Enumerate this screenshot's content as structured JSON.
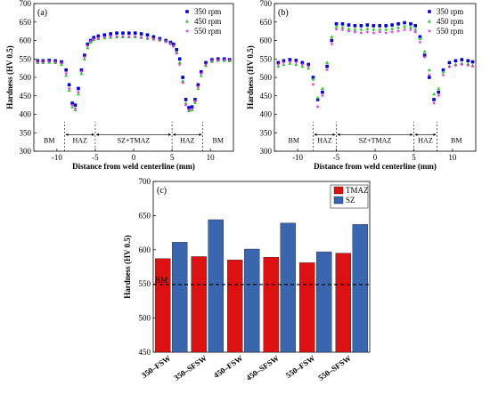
{
  "chart_data": [
    {
      "type": "scatter",
      "panel_label": "(a)",
      "xlabel": "Distance from weld centerline (mm)",
      "ylabel": "Hardness (HV 0.5)",
      "xlim": [
        -13,
        13
      ],
      "ylim": [
        300,
        700
      ],
      "xticks": [
        "-10",
        "-5",
        "0",
        "5",
        "10"
      ],
      "yticks": [
        "300",
        "350",
        "400",
        "450",
        "500",
        "550",
        "600",
        "650",
        "700"
      ],
      "zones": [
        {
          "label": "BM",
          "from": -13,
          "to": -9
        },
        {
          "label": "HAZ",
          "from": -9,
          "to": -5
        },
        {
          "label": "SZ+TMAZ",
          "from": -5,
          "to": 5
        },
        {
          "label": "HAZ",
          "from": 5,
          "to": 9
        },
        {
          "label": "BM",
          "from": 9,
          "to": 13
        }
      ],
      "series": [
        {
          "name": "350 rpm",
          "color": "#0000cc",
          "marker": "square",
          "x": [
            -12.5,
            -11.8,
            -11,
            -10.2,
            -9.4,
            -8.8,
            -8.4,
            -8.0,
            -7.6,
            -7.2,
            -6.8,
            -6.4,
            -6.0,
            -5.6,
            -5.2,
            -4.6,
            -3.8,
            -3.0,
            -2.2,
            -1.4,
            -0.6,
            0.2,
            1.0,
            1.8,
            2.6,
            3.4,
            4.2,
            4.8,
            5.2,
            5.6,
            6.0,
            6.4,
            6.8,
            7.2,
            7.6,
            8.0,
            8.4,
            8.8,
            9.4,
            10.2,
            11.0,
            11.8,
            12.5
          ],
          "y": [
            545,
            545,
            546,
            545,
            542,
            520,
            480,
            430,
            425,
            470,
            520,
            560,
            590,
            600,
            608,
            612,
            615,
            618,
            620,
            620,
            620,
            620,
            618,
            615,
            610,
            605,
            600,
            595,
            590,
            575,
            550,
            500,
            440,
            418,
            420,
            440,
            480,
            515,
            540,
            548,
            550,
            550,
            548
          ]
        },
        {
          "name": "450 rpm",
          "color": "#33cc33",
          "marker": "triangle",
          "x": [
            -12.5,
            -11.8,
            -11,
            -10.2,
            -9.4,
            -8.8,
            -8.4,
            -8.0,
            -7.6,
            -7.2,
            -6.8,
            -6.4,
            -6.0,
            -5.6,
            -5.2,
            -4.6,
            -3.8,
            -3.0,
            -2.2,
            -1.4,
            -0.6,
            0.2,
            1.0,
            1.8,
            2.6,
            3.4,
            4.2,
            4.8,
            5.2,
            5.6,
            6.0,
            6.4,
            6.8,
            7.2,
            7.6,
            8.0,
            8.4,
            8.8,
            9.4,
            10.2,
            11.0,
            11.8,
            12.5
          ],
          "y": [
            540,
            540,
            541,
            540,
            535,
            505,
            465,
            420,
            412,
            455,
            510,
            550,
            580,
            595,
            602,
            605,
            607,
            608,
            610,
            610,
            610,
            610,
            608,
            606,
            604,
            602,
            598,
            592,
            585,
            568,
            540,
            490,
            430,
            410,
            412,
            432,
            470,
            505,
            532,
            543,
            546,
            546,
            545
          ]
        },
        {
          "name": "550 rpm",
          "color": "#cc33cc",
          "marker": "star",
          "x": [
            -12.5,
            -11.8,
            -11,
            -10.2,
            -9.4,
            -8.8,
            -8.4,
            -8.0,
            -7.6,
            -7.2,
            -6.8,
            -6.4,
            -6.0,
            -5.6,
            -5.2,
            -4.6,
            -3.8,
            -3.0,
            -2.2,
            -1.4,
            -0.6,
            0.2,
            1.0,
            1.8,
            2.6,
            3.4,
            4.2,
            4.8,
            5.2,
            5.6,
            6.0,
            6.4,
            6.8,
            7.2,
            7.6,
            8.0,
            8.4,
            8.8,
            9.4,
            10.2,
            11.0,
            11.8,
            12.5
          ],
          "y": [
            542,
            542,
            543,
            542,
            538,
            510,
            470,
            425,
            415,
            460,
            515,
            555,
            585,
            598,
            603,
            606,
            608,
            610,
            610,
            610,
            610,
            610,
            608,
            606,
            603,
            600,
            596,
            590,
            584,
            565,
            535,
            485,
            425,
            412,
            414,
            436,
            474,
            510,
            535,
            545,
            547,
            547,
            546
          ]
        }
      ]
    },
    {
      "type": "scatter",
      "panel_label": "(b)",
      "xlabel": "Distance from weld centerline (mm)",
      "ylabel": "Hardness (HV 0.5)",
      "xlim": [
        -13,
        13
      ],
      "ylim": [
        300,
        700
      ],
      "xticks": [
        "-10",
        "-5",
        "0",
        "5",
        "10"
      ],
      "yticks": [
        "300",
        "350",
        "400",
        "450",
        "500",
        "550",
        "600",
        "650",
        "700"
      ],
      "zones": [
        {
          "label": "BM",
          "from": -13,
          "to": -8
        },
        {
          "label": "HAZ",
          "from": -8,
          "to": -5
        },
        {
          "label": "SZ+TMAZ",
          "from": -5,
          "to": 5
        },
        {
          "label": "HAZ",
          "from": 5,
          "to": 8
        },
        {
          "label": "BM",
          "from": 8,
          "to": 13
        }
      ],
      "series": [
        {
          "name": "350 rpm",
          "color": "#0000cc",
          "marker": "square",
          "x": [
            -12.5,
            -11.8,
            -11,
            -10.2,
            -9.4,
            -8.6,
            -8.0,
            -7.4,
            -6.8,
            -6.2,
            -5.6,
            -5.0,
            -4.2,
            -3.4,
            -2.6,
            -1.8,
            -1.0,
            -0.2,
            0.6,
            1.4,
            2.2,
            3.0,
            3.8,
            4.6,
            5.2,
            5.8,
            6.4,
            7.0,
            7.6,
            8.2,
            8.8,
            9.6,
            10.4,
            11.2,
            12.0,
            12.6
          ],
          "y": [
            540,
            545,
            548,
            546,
            540,
            535,
            500,
            440,
            460,
            530,
            600,
            645,
            645,
            642,
            640,
            640,
            642,
            640,
            640,
            640,
            642,
            645,
            648,
            645,
            640,
            610,
            560,
            500,
            440,
            460,
            520,
            540,
            545,
            548,
            545,
            542
          ]
        },
        {
          "name": "450 rpm",
          "color": "#33cc33",
          "marker": "triangle",
          "x": [
            -12.5,
            -11.8,
            -11,
            -10.2,
            -9.4,
            -8.6,
            -8.0,
            -7.4,
            -6.8,
            -6.2,
            -5.6,
            -5.0,
            -4.2,
            -3.4,
            -2.6,
            -1.8,
            -1.0,
            -0.2,
            0.6,
            1.4,
            2.2,
            3.0,
            3.8,
            4.6,
            5.2,
            5.8,
            6.4,
            7.0,
            7.6,
            8.2,
            8.8,
            9.6,
            10.4,
            11.2,
            12.0,
            12.6
          ],
          "y": [
            530,
            535,
            538,
            535,
            530,
            525,
            495,
            445,
            470,
            540,
            610,
            638,
            636,
            632,
            630,
            630,
            632,
            630,
            630,
            630,
            632,
            635,
            638,
            636,
            630,
            605,
            570,
            520,
            455,
            470,
            515,
            530,
            535,
            538,
            536,
            532
          ]
        },
        {
          "name": "550 rpm",
          "color": "#cc33cc",
          "marker": "star",
          "x": [
            -12.5,
            -11.8,
            -11,
            -10.2,
            -9.4,
            -8.6,
            -8.0,
            -7.4,
            -6.8,
            -6.2,
            -5.6,
            -5.0,
            -4.2,
            -3.4,
            -2.6,
            -1.8,
            -1.0,
            -0.2,
            0.6,
            1.4,
            2.2,
            3.0,
            3.8,
            4.6,
            5.2,
            5.8,
            6.4,
            7.0,
            7.6,
            8.2,
            8.8,
            9.6,
            10.4,
            11.2,
            12.0,
            12.6
          ],
          "y": [
            535,
            540,
            542,
            540,
            535,
            530,
            480,
            420,
            450,
            520,
            590,
            630,
            628,
            625,
            622,
            620,
            622,
            620,
            622,
            620,
            622,
            625,
            628,
            628,
            622,
            595,
            555,
            505,
            430,
            450,
            505,
            528,
            532,
            535,
            532,
            530
          ]
        }
      ]
    },
    {
      "type": "bar",
      "panel_label": "(c)",
      "ylabel": "Hardness (HV 0.5)",
      "ylim": [
        450,
        700
      ],
      "yticks": [
        "450",
        "500",
        "550",
        "600",
        "650",
        "700"
      ],
      "categories": [
        "350–FSW",
        "350–SFSW",
        "450–FSW",
        "450–SFSW",
        "550–FSW",
        "550–SFSW"
      ],
      "series": [
        {
          "name": "TMAZ",
          "color": "#dd1111",
          "values": [
            587,
            590,
            585,
            589,
            581,
            595
          ]
        },
        {
          "name": "SZ",
          "color": "#3a66b0",
          "values": [
            611,
            644,
            601,
            639,
            597,
            637
          ]
        }
      ],
      "reference_line": {
        "label": "BM",
        "value": 549
      }
    }
  ]
}
